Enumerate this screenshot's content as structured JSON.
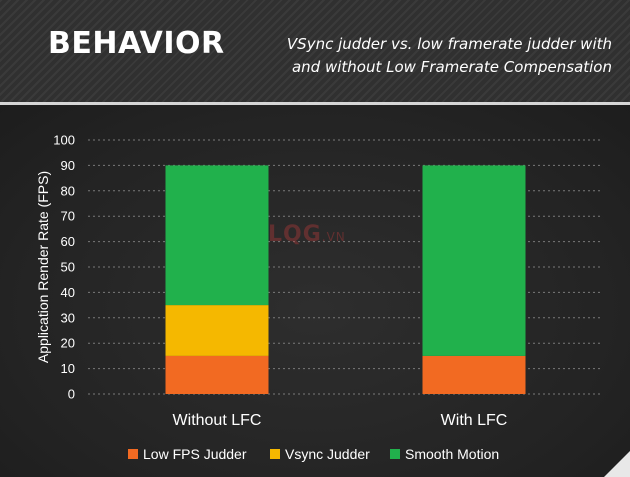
{
  "slide": {
    "title": "BEHAVIOR",
    "subtitle_line1": "VSync judder vs. low framerate judder with",
    "subtitle_line2": "and without Low Framerate Compensation",
    "watermark": "LQG.vn"
  },
  "colors": {
    "low_fps_judder": "#f26a22",
    "vsync_judder": "#f5b800",
    "smooth_motion": "#21b14c",
    "grid": "#7a7a7a",
    "text": "#ffffff"
  },
  "chart_data": {
    "type": "bar",
    "stacked": true,
    "categories": [
      "Without LFC",
      "With LFC"
    ],
    "series": [
      {
        "name": "Low FPS Judder",
        "values": [
          15,
          15
        ],
        "color": "#f26a22"
      },
      {
        "name": "Vsync Judder",
        "values": [
          20,
          0
        ],
        "color": "#f5b800"
      },
      {
        "name": "Smooth Motion",
        "values": [
          55,
          75
        ],
        "color": "#21b14c"
      }
    ],
    "ylabel": "Application Render Rate (FPS)",
    "xlabel": "",
    "ylim": [
      0,
      100
    ],
    "yticks": [
      0,
      10,
      20,
      30,
      40,
      50,
      60,
      70,
      80,
      90,
      100
    ],
    "grid": true,
    "legend_position": "bottom"
  }
}
